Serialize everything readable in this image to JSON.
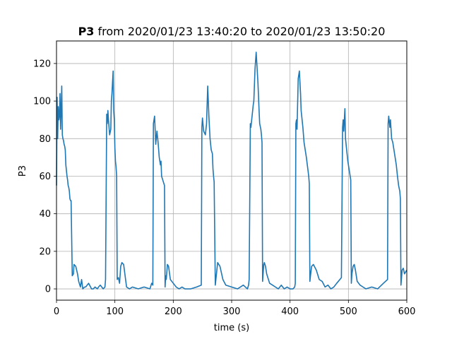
{
  "chart_data": {
    "type": "line",
    "title": {
      "series_label": "P3",
      "rest": " from 2020/01/23 13:40:20 to 2020/01/23 13:50:20"
    },
    "xlabel": "time (s)",
    "ylabel": "P3",
    "xlim": [
      0,
      600
    ],
    "ylim": [
      -6,
      132
    ],
    "xticks": [
      0,
      100,
      200,
      300,
      400,
      500,
      600
    ],
    "yticks": [
      0,
      20,
      40,
      60,
      80,
      100,
      120
    ],
    "grid": true,
    "line_color": "#1f77b4",
    "series": [
      {
        "x": [
          0,
          1,
          2,
          3,
          4,
          5,
          6,
          7,
          8,
          9,
          10,
          11,
          12,
          13,
          14,
          15,
          16,
          18,
          19,
          20,
          21,
          22,
          23,
          24,
          25,
          27,
          29,
          30,
          33,
          36,
          38,
          40,
          41,
          43,
          45,
          48,
          50,
          55,
          60,
          63,
          66,
          70,
          72,
          75,
          80,
          83,
          84,
          86,
          87,
          88,
          89,
          91,
          93,
          94,
          95,
          96,
          97,
          98,
          99,
          100,
          101,
          102,
          103,
          104,
          106,
          108,
          110,
          112,
          115,
          120,
          125,
          130,
          140,
          150,
          160,
          163,
          165,
          166,
          168,
          170,
          172,
          174,
          176,
          178,
          179,
          180,
          182,
          184,
          185,
          186,
          187,
          188,
          190,
          192,
          195,
          200,
          205,
          210,
          215,
          220,
          230,
          240,
          248,
          249,
          250,
          252,
          255,
          257,
          259,
          261,
          263,
          265,
          267,
          268,
          269,
          270,
          272,
          274,
          276,
          278,
          280,
          285,
          290,
          300,
          310,
          320,
          327,
          329,
          330,
          332,
          333,
          335,
          337,
          338,
          340,
          342,
          345,
          347,
          348,
          350,
          351,
          352,
          353,
          355,
          356,
          358,
          360,
          365,
          370,
          375,
          380,
          385,
          390,
          395,
          400,
          405,
          408,
          409,
          410,
          411,
          412,
          414,
          416,
          418,
          419,
          420,
          422,
          424,
          426,
          428,
          430,
          432,
          433,
          434,
          435,
          437,
          440,
          445,
          450,
          455,
          460,
          465,
          470,
          475,
          480,
          488,
          490,
          491,
          492,
          494,
          495,
          497,
          499,
          500,
          502,
          504,
          505,
          506,
          508,
          510,
          512,
          515,
          520,
          525,
          530,
          540,
          550,
          560,
          567,
          568,
          569,
          571,
          572,
          574,
          576,
          578,
          580,
          582,
          584,
          586,
          588,
          589,
          590,
          592,
          594,
          596,
          598,
          600
        ],
        "y": [
          55,
          102,
          80,
          97,
          90,
          92,
          104,
          85,
          95,
          108,
          82,
          80,
          79,
          77,
          76,
          74,
          66,
          60,
          58,
          55,
          54,
          52,
          48,
          47,
          47,
          7,
          8,
          13,
          12,
          8,
          4,
          2,
          1,
          5,
          0,
          1,
          1,
          3,
          0,
          0,
          1,
          0,
          1,
          2,
          0,
          1,
          5,
          93,
          88,
          95,
          90,
          82,
          85,
          100,
          104,
          110,
          116,
          95,
          90,
          75,
          68,
          65,
          60,
          5,
          6,
          3,
          12,
          14,
          13,
          1,
          0,
          1,
          0,
          1,
          0,
          3,
          2,
          88,
          92,
          77,
          84,
          78,
          70,
          66,
          68,
          60,
          58,
          56,
          55,
          1,
          7,
          5,
          13,
          12,
          5,
          3,
          1,
          0,
          1,
          0,
          0,
          1,
          2,
          86,
          91,
          84,
          82,
          88,
          108,
          92,
          80,
          74,
          72,
          64,
          60,
          57,
          2,
          8,
          14,
          13,
          12,
          5,
          2,
          1,
          0,
          2,
          0,
          2,
          5,
          88,
          86,
          92,
          98,
          100,
          117,
          126,
          110,
          95,
          88,
          85,
          82,
          78,
          4,
          13,
          14,
          12,
          8,
          3,
          2,
          1,
          0,
          2,
          0,
          1,
          0,
          0,
          1,
          3,
          88,
          90,
          85,
          112,
          116,
          104,
          95,
          92,
          86,
          78,
          74,
          70,
          65,
          60,
          56,
          4,
          7,
          12,
          13,
          10,
          5,
          4,
          1,
          2,
          0,
          1,
          3,
          6,
          86,
          90,
          84,
          96,
          80,
          74,
          68,
          66,
          62,
          58,
          3,
          8,
          12,
          13,
          10,
          4,
          2,
          1,
          0,
          1,
          0,
          3,
          5,
          88,
          92,
          86,
          90,
          80,
          78,
          74,
          70,
          66,
          60,
          55,
          52,
          48,
          2,
          10,
          11,
          8,
          9,
          10
        ]
      }
    ]
  }
}
